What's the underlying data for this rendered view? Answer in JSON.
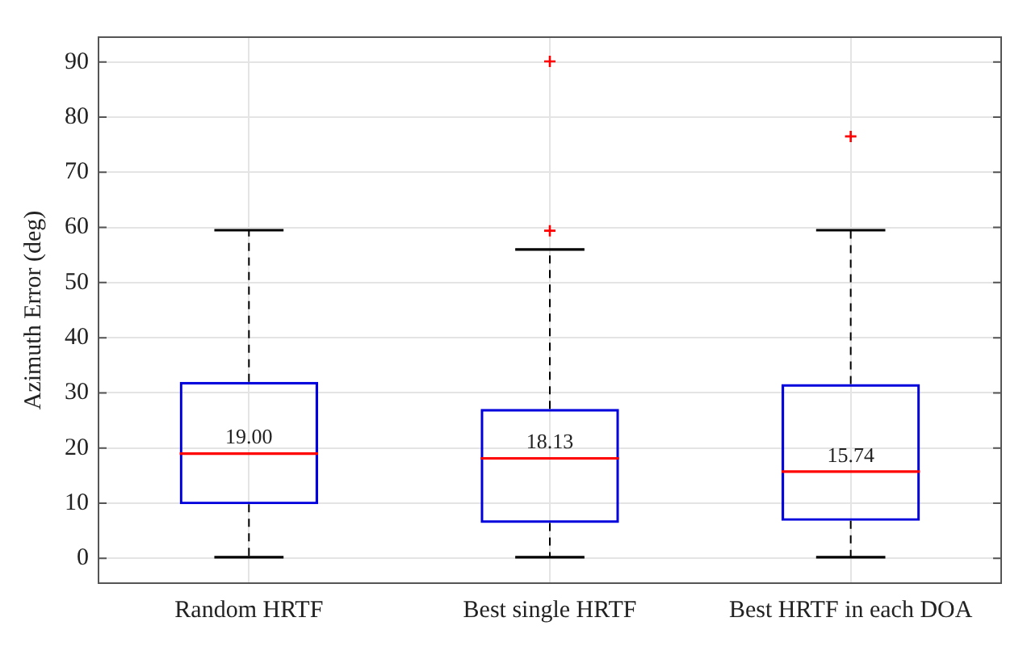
{
  "chart_data": {
    "type": "box",
    "ylabel": "Azimuth Error (deg)",
    "categories": [
      "Random HRTF",
      "Best single HRTF",
      "Best HRTF in each DOA"
    ],
    "boxes": [
      {
        "low": 0.2,
        "q1": 9.8,
        "median": 19.0,
        "q3": 32.0,
        "high": 59.5
      },
      {
        "low": 0.2,
        "q1": 6.4,
        "median": 18.13,
        "q3": 27.1,
        "high": 56.0,
        "outliers": [
          59.4,
          90.1
        ]
      },
      {
        "low": 0.2,
        "q1": 6.8,
        "median": 15.74,
        "q3": 31.6,
        "high": 59.5,
        "outliers": [
          76.5
        ]
      }
    ],
    "value_labels": [
      "19.00",
      "18.13",
      "15.74"
    ],
    "color": "#0000dd",
    "ylim": [
      -4.5,
      94.5
    ],
    "yticks": [
      0,
      10,
      20,
      30,
      40,
      50,
      60,
      70,
      80,
      90
    ],
    "grid": true,
    "marker": "cross"
  }
}
